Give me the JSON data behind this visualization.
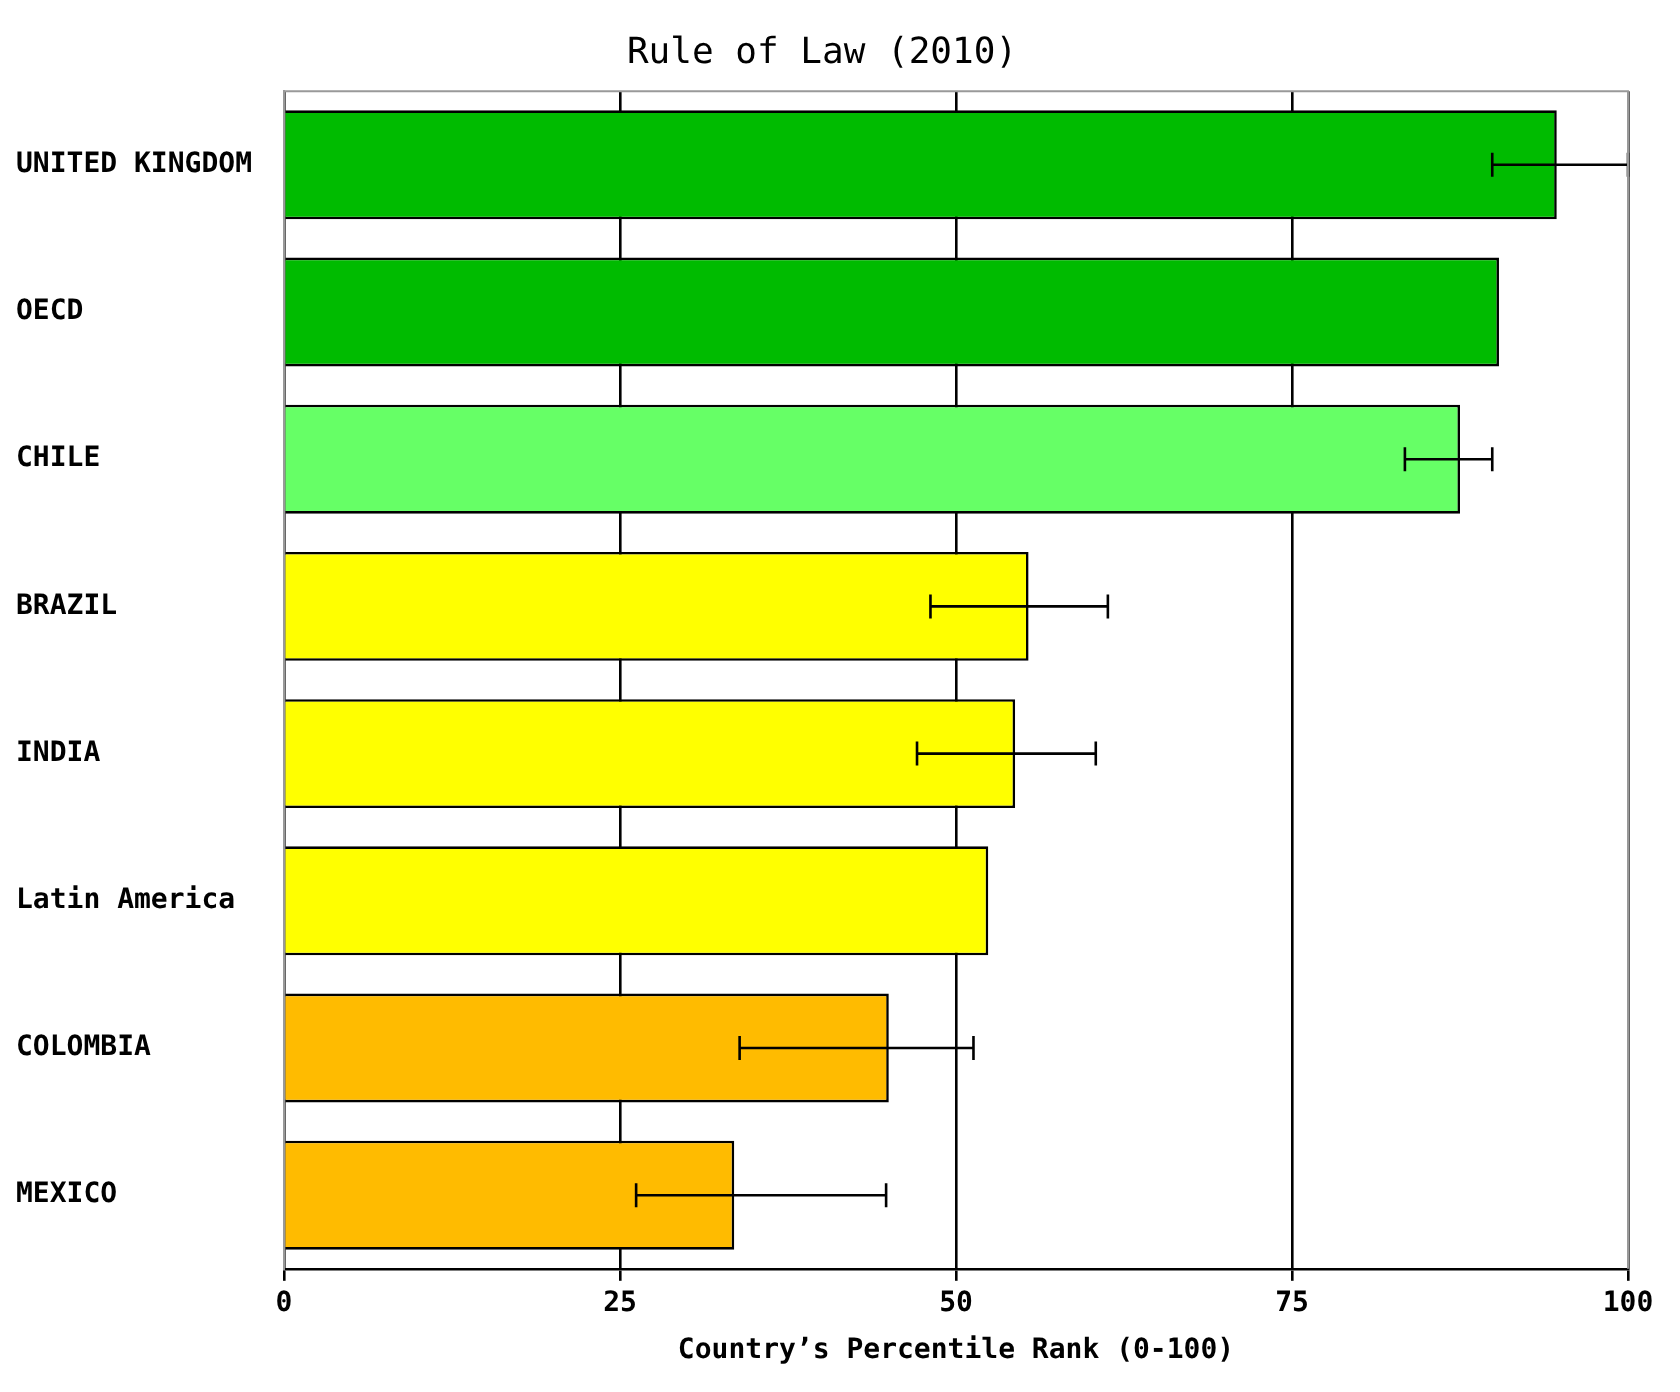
{
  "chart_data": {
    "type": "bar",
    "orientation": "horizontal",
    "title": "Rule of Law (2010)",
    "xlabel": "Country’s Percentile Rank (0-100)",
    "categories": [
      "UNITED KINGDOM",
      "OECD",
      "CHILE",
      "BRAZIL",
      "INDIA",
      "Latin America",
      "COLOMBIA",
      "MEXICO"
    ],
    "values": [
      94.7,
      90.4,
      87.5,
      55.4,
      54.4,
      52.4,
      45.0,
      33.5
    ],
    "colors": [
      "#00bb00",
      "#00bb00",
      "#66ff66",
      "#ffff00",
      "#ffff00",
      "#ffff00",
      "#ffbb00",
      "#ffbb00"
    ],
    "errors": [
      [
        89.9,
        100
      ],
      null,
      [
        83.4,
        89.9
      ],
      [
        48.1,
        61.3
      ],
      [
        47.1,
        60.4
      ],
      null,
      [
        33.9,
        51.3
      ],
      [
        26.2,
        44.8
      ]
    ],
    "xlim": [
      0,
      100
    ],
    "xticks": [
      0,
      25,
      50,
      75,
      100
    ],
    "grid": "x",
    "legend": false
  }
}
